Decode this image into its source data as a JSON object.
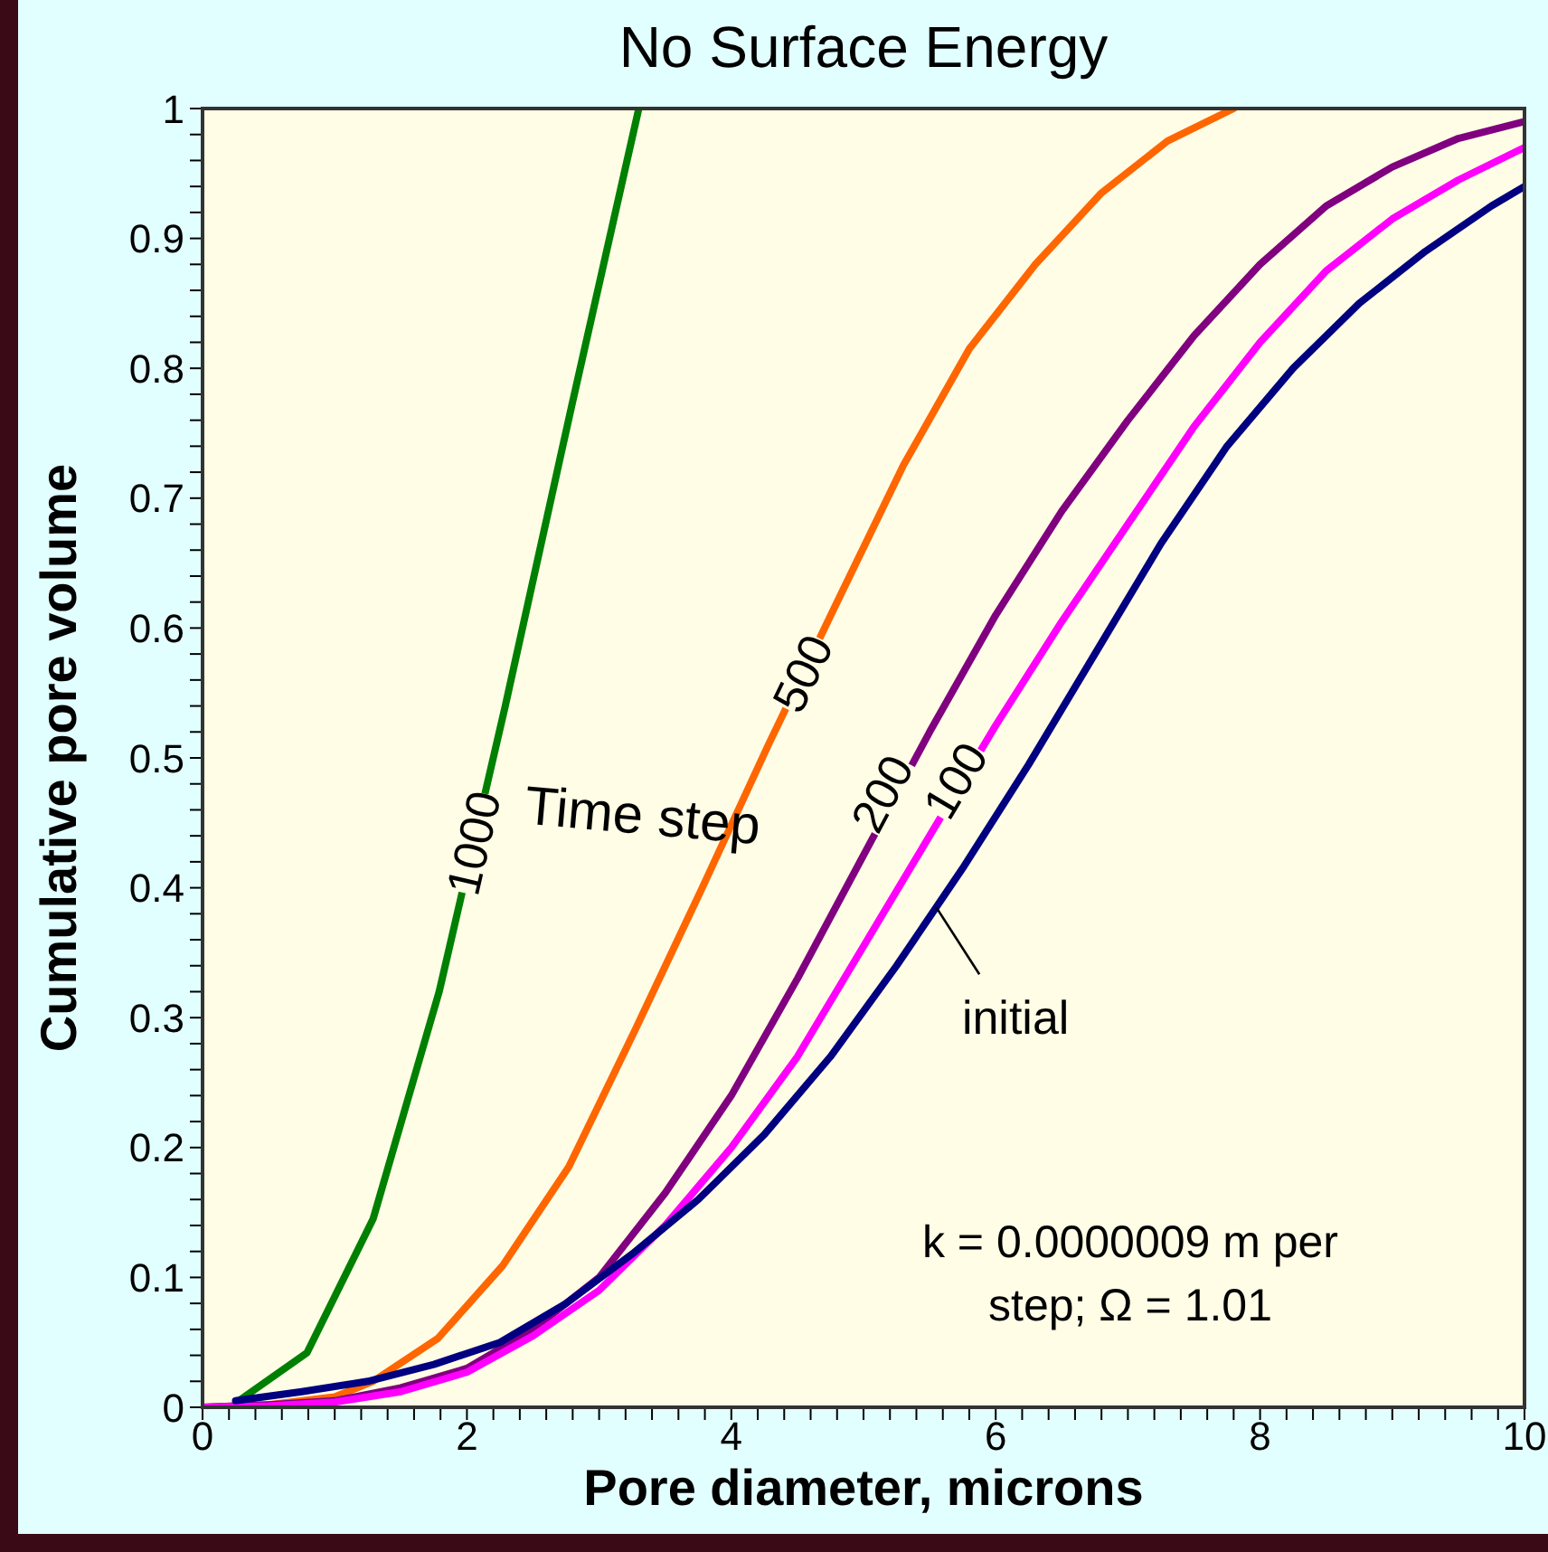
{
  "chart_data": {
    "type": "line",
    "title": "No Surface Energy",
    "xlabel": "Pore diameter, microns",
    "ylabel": "Cumulative pore volume",
    "annotations": [
      "Time step",
      "k = 0.0000009 m per step; Ω = 1.01"
    ],
    "xlim": [
      0,
      10
    ],
    "ylim": [
      0,
      1
    ],
    "xticks": [
      0,
      {
        "value": 0.2,
        "label": null
      },
      {
        "value": 0.4,
        "label": null
      },
      {
        "value": 0.6,
        "label": null
      },
      {
        "value": 0.8,
        "label": null
      },
      {
        "value": 1,
        "label": null
      },
      {
        "value": 1.2,
        "label": null
      },
      {
        "value": 1.4,
        "label": null
      },
      {
        "value": 1.6,
        "label": null
      },
      {
        "value": 1.8,
        "label": null
      },
      2,
      {
        "value": 2.2,
        "label": null
      },
      {
        "value": 2.4,
        "label": null
      },
      {
        "value": 2.6,
        "label": null
      },
      {
        "value": 2.8,
        "label": null
      },
      {
        "value": 3,
        "label": null
      },
      {
        "value": 3.2,
        "label": null
      },
      {
        "value": 3.4,
        "label": null
      },
      {
        "value": 3.6,
        "label": null
      },
      {
        "value": 3.8,
        "label": null
      },
      4,
      {
        "value": 4.2,
        "label": null
      },
      {
        "value": 4.4,
        "label": null
      },
      {
        "value": 4.6,
        "label": null
      },
      {
        "value": 4.8,
        "label": null
      },
      {
        "value": 5,
        "label": null
      },
      {
        "value": 5.2,
        "label": null
      },
      {
        "value": 5.4,
        "label": null
      },
      {
        "value": 5.6,
        "label": null
      },
      {
        "value": 5.8,
        "label": null
      },
      6,
      {
        "value": 6.2,
        "label": null
      },
      {
        "value": 6.4,
        "label": null
      },
      {
        "value": 6.6,
        "label": null
      },
      {
        "value": 6.8,
        "label": null
      },
      {
        "value": 7,
        "label": null
      },
      {
        "value": 7.2,
        "label": null
      },
      {
        "value": 7.4,
        "label": null
      },
      {
        "value": 7.6,
        "label": null
      },
      {
        "value": 7.8,
        "label": null
      },
      8,
      {
        "value": 8.2,
        "label": null
      },
      {
        "value": 8.4,
        "label": null
      },
      {
        "value": 8.6,
        "label": null
      },
      {
        "value": 8.8,
        "label": null
      },
      {
        "value": 9,
        "label": null
      },
      {
        "value": 9.2,
        "label": null
      },
      {
        "value": 9.4,
        "label": null
      },
      {
        "value": 9.6,
        "label": null
      },
      {
        "value": 9.8,
        "label": null
      },
      10
    ],
    "yticks": [
      0,
      {
        "value": 0.02,
        "label": null
      },
      {
        "value": 0.04,
        "label": null
      },
      {
        "value": 0.06,
        "label": null
      },
      {
        "value": 0.08,
        "label": null
      },
      0.1,
      {
        "value": 0.12,
        "label": null
      },
      {
        "value": 0.14,
        "label": null
      },
      {
        "value": 0.16,
        "label": null
      },
      {
        "value": 0.18,
        "label": null
      },
      0.2,
      {
        "value": 0.22,
        "label": null
      },
      {
        "value": 0.24,
        "label": null
      },
      {
        "value": 0.26,
        "label": null
      },
      {
        "value": 0.28,
        "label": null
      },
      0.3,
      {
        "value": 0.32,
        "label": null
      },
      {
        "value": 0.34,
        "label": null
      },
      {
        "value": 0.36,
        "label": null
      },
      {
        "value": 0.38,
        "label": null
      },
      0.4,
      {
        "value": 0.42,
        "label": null
      },
      {
        "value": 0.44,
        "label": null
      },
      {
        "value": 0.46,
        "label": null
      },
      {
        "value": 0.48,
        "label": null
      },
      0.5,
      {
        "value": 0.52,
        "label": null
      },
      {
        "value": 0.54,
        "label": null
      },
      {
        "value": 0.56,
        "label": null
      },
      {
        "value": 0.58,
        "label": null
      },
      0.6,
      {
        "value": 0.62,
        "label": null
      },
      {
        "value": 0.64,
        "label": null
      },
      {
        "value": 0.66,
        "label": null
      },
      {
        "value": 0.68,
        "label": null
      },
      0.7,
      {
        "value": 0.72,
        "label": null
      },
      {
        "value": 0.74,
        "label": null
      },
      {
        "value": 0.76,
        "label": null
      },
      {
        "value": 0.78,
        "label": null
      },
      0.8,
      {
        "value": 0.82,
        "label": null
      },
      {
        "value": 0.84,
        "label": null
      },
      {
        "value": 0.86,
        "label": null
      },
      {
        "value": 0.88,
        "label": null
      },
      0.9,
      {
        "value": 0.92,
        "label": null
      },
      {
        "value": 0.94,
        "label": null
      },
      {
        "value": 0.96,
        "label": null
      },
      {
        "value": 0.98,
        "label": null
      },
      1
    ],
    "grid": false,
    "legend": false,
    "marker": "none",
    "line_style": "solid",
    "series": [
      {
        "name": "1000",
        "color": "#008000",
        "x": [
          0.26,
          0.79,
          1.29,
          1.79,
          2.29,
          2.79,
          3.3
        ],
        "values": [
          0.004,
          0.042,
          0.145,
          0.32,
          0.54,
          0.77,
          1.0
        ]
      },
      {
        "name": "500",
        "color": "#ff6600",
        "x": [
          0,
          0.5,
          1,
          1.29,
          1.78,
          2.27,
          2.77,
          3.27,
          3.78,
          4.28,
          4.8,
          5.3,
          5.8,
          6.3,
          6.8,
          7.3,
          7.8
        ],
        "values": [
          0,
          0.002,
          0.008,
          0.02,
          0.053,
          0.109,
          0.185,
          0.29,
          0.4,
          0.51,
          0.62,
          0.725,
          0.815,
          0.88,
          0.935,
          0.975,
          1.0
        ]
      },
      {
        "name": "200",
        "color": "#800080",
        "x": [
          0,
          0.5,
          1,
          1.5,
          2,
          2.5,
          3,
          3.5,
          4,
          4.5,
          5,
          5.5,
          6,
          6.5,
          7,
          7.5,
          8,
          8.5,
          9,
          9.5,
          10
        ],
        "values": [
          0,
          0.002,
          0.005,
          0.015,
          0.03,
          0.06,
          0.1,
          0.165,
          0.24,
          0.33,
          0.425,
          0.52,
          0.61,
          0.69,
          0.76,
          0.825,
          0.88,
          0.925,
          0.955,
          0.977,
          0.99
        ]
      },
      {
        "name": "100",
        "color": "#ff00ff",
        "x": [
          0,
          0.5,
          1,
          1.5,
          2,
          2.5,
          3,
          3.5,
          4,
          4.5,
          5,
          5.5,
          6,
          6.5,
          7,
          7.5,
          8,
          8.5,
          9,
          9.5,
          10
        ],
        "values": [
          0,
          0.001,
          0.004,
          0.012,
          0.027,
          0.055,
          0.09,
          0.14,
          0.2,
          0.27,
          0.355,
          0.44,
          0.525,
          0.605,
          0.68,
          0.755,
          0.82,
          0.875,
          0.915,
          0.945,
          0.97
        ]
      },
      {
        "name": "initial",
        "color": "#000080",
        "x": [
          0.25,
          0.75,
          1.25,
          1.75,
          2.25,
          2.75,
          3.25,
          3.75,
          4.25,
          4.75,
          5.25,
          5.75,
          6.25,
          6.75,
          7.25,
          7.75,
          8.25,
          8.75,
          9.25,
          9.75,
          10
        ],
        "values": [
          0.005,
          0.012,
          0.02,
          0.033,
          0.05,
          0.08,
          0.118,
          0.16,
          0.21,
          0.27,
          0.34,
          0.415,
          0.495,
          0.58,
          0.665,
          0.74,
          0.8,
          0.85,
          0.89,
          0.925,
          0.94
        ]
      }
    ]
  }
}
